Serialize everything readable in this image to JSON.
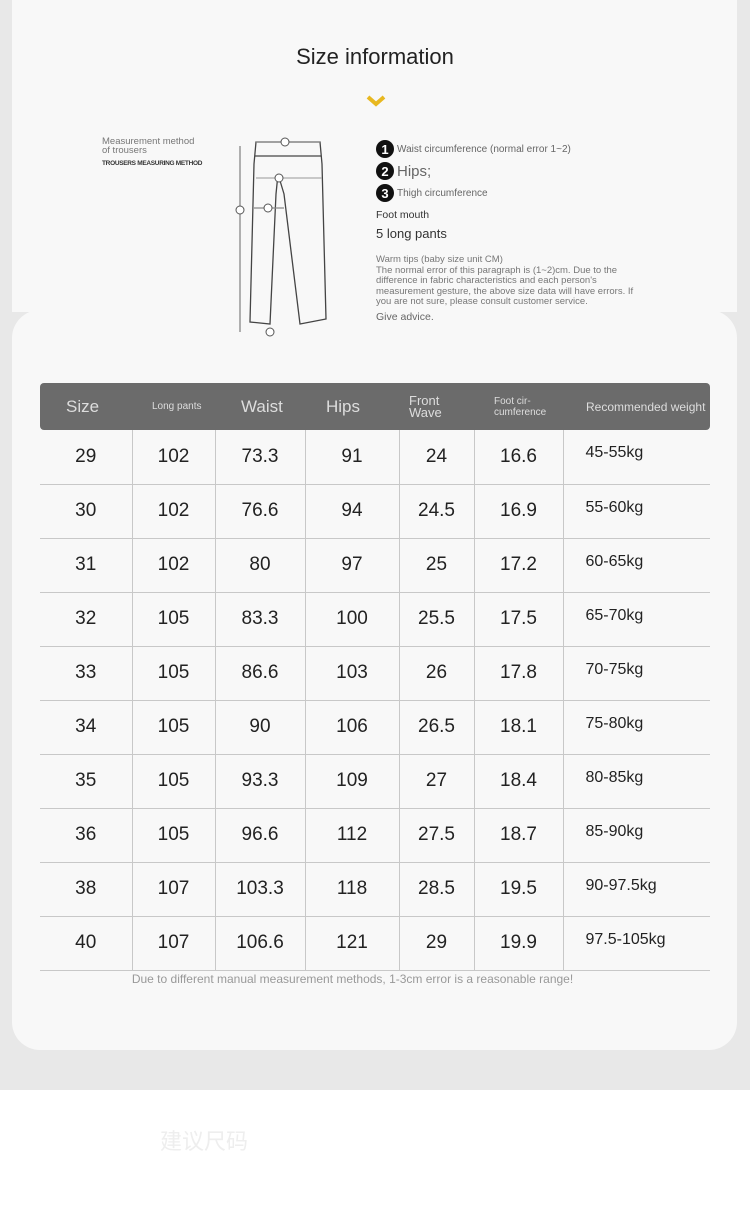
{
  "title": "Size information",
  "accent": "#e8b820",
  "method": {
    "line1": "Measurement method",
    "line2": "of trousers",
    "sub": "TROUSERS MEASURING METHOD"
  },
  "legend": [
    {
      "n": "1",
      "label": "Waist circumference (normal error 1~2)"
    },
    {
      "n": "2",
      "label": "Hips;"
    },
    {
      "n": "3",
      "label": "Thigh circumference"
    }
  ],
  "foot_mouth": "Foot mouth",
  "long_pants": "5 long pants",
  "tips": {
    "heading": "Warm tips (baby size unit CM)",
    "body": "The normal error of this paragraph is (1~2)cm. Due to the difference in fabric characteristics and each person's measurement gesture, the above size data will have errors. If you are not sure, please consult customer service.",
    "advice": "Give advice."
  },
  "table": {
    "headers": [
      "Size",
      "Long pants",
      "Waist",
      "Hips",
      "Front Wave",
      "Foot cir-cumference",
      "Recommended weight"
    ],
    "rows": [
      [
        "29",
        "102",
        "73.3",
        "91",
        "24",
        "16.6",
        "45-55kg"
      ],
      [
        "30",
        "102",
        "76.6",
        "94",
        "24.5",
        "16.9",
        "55-60kg"
      ],
      [
        "31",
        "102",
        "80",
        "97",
        "25",
        "17.2",
        "60-65kg"
      ],
      [
        "32",
        "105",
        "83.3",
        "100",
        "25.5",
        "17.5",
        "65-70kg"
      ],
      [
        "33",
        "105",
        "86.6",
        "103",
        "26",
        "17.8",
        "70-75kg"
      ],
      [
        "34",
        "105",
        "90",
        "106",
        "26.5",
        "18.1",
        "75-80kg"
      ],
      [
        "35",
        "105",
        "93.3",
        "109",
        "27",
        "18.4",
        "80-85kg"
      ],
      [
        "36",
        "105",
        "96.6",
        "112",
        "27.5",
        "18.7",
        "85-90kg"
      ],
      [
        "38",
        "107",
        "103.3",
        "118",
        "28.5",
        "19.5",
        "90-97.5kg"
      ],
      [
        "40",
        "107",
        "106.6",
        "121",
        "29",
        "19.9",
        "97.5-105kg"
      ]
    ]
  },
  "note": "Due to different manual measurement methods, 1-3cm error is a reasonable range!",
  "watermark": "建议尺码"
}
